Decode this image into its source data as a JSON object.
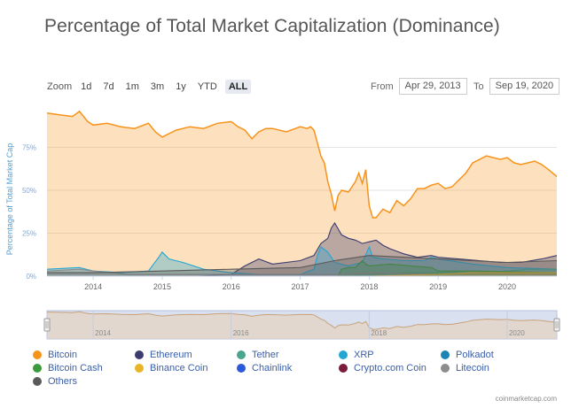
{
  "title": "Percentage of Total Market Capitalization (Dominance)",
  "zoom": {
    "label": "Zoom",
    "buttons": [
      "1d",
      "7d",
      "1m",
      "3m",
      "1y",
      "YTD",
      "ALL"
    ],
    "active": "ALL"
  },
  "range": {
    "from_label": "From",
    "from_value": "Apr 29, 2013",
    "to_label": "To",
    "to_value": "Sep 19, 2020"
  },
  "credit": "coinmarketcap.com",
  "colors": {
    "Bitcoin": "#f7931a",
    "Ethereum": "#3c3c6e",
    "Tether": "#4aa58e",
    "XRP": "#23a7d2",
    "Polkadot": "#1b86b3",
    "Bitcoin Cash": "#3b9a3b",
    "Binance Coin": "#e8b526",
    "Chainlink": "#2a5ada",
    "Crypto.com Coin": "#7a1d3a",
    "Litecoin": "#8c8c8c",
    "Others": "#5a5a5a"
  },
  "chart_data": {
    "type": "area",
    "title": "Percentage of Total Market Capitalization (Dominance)",
    "ylabel": "Percentage of Total Market Cap",
    "xlabel": "",
    "ylim": [
      0,
      100
    ],
    "xlim": [
      2013.33,
      2020.72
    ],
    "y_ticks": [
      "0%",
      "25%",
      "50%",
      "75%"
    ],
    "x_ticks": [
      "2014",
      "2015",
      "2016",
      "2017",
      "2018",
      "2019",
      "2020"
    ],
    "grid": true,
    "legend_position": "bottom",
    "series": [
      {
        "name": "Bitcoin",
        "x": [
          2013.33,
          2013.5,
          2013.7,
          2013.8,
          2013.92,
          2014.0,
          2014.2,
          2014.4,
          2014.6,
          2014.8,
          2014.9,
          2015.0,
          2015.2,
          2015.4,
          2015.6,
          2015.8,
          2016.0,
          2016.1,
          2016.2,
          2016.3,
          2016.4,
          2016.5,
          2016.6,
          2016.8,
          2017.0,
          2017.1,
          2017.15,
          2017.2,
          2017.3,
          2017.35,
          2017.4,
          2017.45,
          2017.5,
          2017.55,
          2017.6,
          2017.7,
          2017.8,
          2017.85,
          2017.9,
          2017.95,
          2018.0,
          2018.05,
          2018.1,
          2018.2,
          2018.3,
          2018.4,
          2018.5,
          2018.6,
          2018.7,
          2018.8,
          2018.9,
          2019.0,
          2019.1,
          2019.2,
          2019.3,
          2019.4,
          2019.5,
          2019.6,
          2019.7,
          2019.8,
          2019.9,
          2020.0,
          2020.1,
          2020.2,
          2020.3,
          2020.4,
          2020.5,
          2020.6,
          2020.72
        ],
        "values": [
          95,
          94,
          93,
          96,
          90,
          88,
          89,
          87,
          86,
          89,
          84,
          81,
          85,
          87,
          86,
          89,
          90,
          87,
          85,
          80,
          84,
          86,
          86,
          84,
          87,
          86,
          87,
          85,
          70,
          66,
          55,
          48,
          38,
          47,
          50,
          49,
          55,
          60,
          54,
          62,
          41,
          34,
          34,
          39,
          37,
          44,
          41,
          45,
          51,
          51,
          53,
          54,
          51,
          52,
          56,
          60,
          66,
          68,
          70,
          69,
          68,
          69,
          66,
          65,
          66,
          67,
          65,
          62,
          58
        ]
      },
      {
        "name": "Ethereum",
        "x": [
          2013.33,
          2015.5,
          2016.0,
          2016.2,
          2016.4,
          2016.6,
          2017.0,
          2017.2,
          2017.3,
          2017.4,
          2017.45,
          2017.5,
          2017.6,
          2017.7,
          2017.8,
          2017.9,
          2018.0,
          2018.1,
          2018.2,
          2018.3,
          2018.5,
          2018.7,
          2018.9,
          2019.0,
          2019.3,
          2019.6,
          2019.9,
          2020.2,
          2020.5,
          2020.72
        ],
        "values": [
          0,
          0,
          1,
          6,
          10,
          7,
          9,
          12,
          19,
          22,
          28,
          31,
          24,
          22,
          21,
          19,
          20,
          21,
          18,
          16,
          13,
          11,
          12,
          11,
          10,
          9,
          8,
          8,
          10,
          12
        ]
      },
      {
        "name": "XRP",
        "x": [
          2013.33,
          2013.8,
          2014.0,
          2014.4,
          2014.8,
          2014.95,
          2015.0,
          2015.1,
          2015.3,
          2015.6,
          2016.0,
          2016.4,
          2016.8,
          2017.0,
          2017.2,
          2017.25,
          2017.3,
          2017.4,
          2017.5,
          2017.7,
          2017.9,
          2018.0,
          2018.05,
          2018.2,
          2018.5,
          2018.8,
          2018.9,
          2019.0,
          2019.5,
          2020.0,
          2020.72
        ],
        "values": [
          4,
          5,
          3,
          2,
          3,
          11,
          14,
          10,
          8,
          4,
          2,
          1,
          1,
          1,
          4,
          12,
          17,
          14,
          8,
          6,
          8,
          17,
          11,
          10,
          9,
          9,
          11,
          10,
          7,
          5,
          4
        ]
      },
      {
        "name": "Tether",
        "x": [
          2013.33,
          2017.5,
          2018.0,
          2018.5,
          2019.0,
          2019.5,
          2020.0,
          2020.3,
          2020.72
        ],
        "values": [
          0,
          0,
          1,
          2,
          2,
          2,
          3,
          4,
          4
        ]
      },
      {
        "name": "Bitcoin Cash",
        "x": [
          2013.33,
          2017.55,
          2017.6,
          2017.7,
          2017.8,
          2017.9,
          2017.95,
          2018.0,
          2018.3,
          2018.6,
          2018.9,
          2019.0,
          2019.5,
          2020.72
        ],
        "values": [
          0,
          0,
          4,
          5,
          5,
          9,
          7,
          6,
          7,
          6,
          5,
          3,
          3,
          2
        ]
      },
      {
        "name": "Litecoin",
        "x": [
          2013.33,
          2013.8,
          2014.0,
          2014.5,
          2015.0,
          2016.0,
          2017.0,
          2017.5,
          2018.0,
          2019.0,
          2019.5,
          2020.72
        ],
        "values": [
          3,
          4,
          3,
          1,
          1,
          1,
          1,
          1,
          2,
          1,
          2,
          1
        ]
      },
      {
        "name": "Binance Coin",
        "x": [
          2013.33,
          2018.0,
          2019.0,
          2019.5,
          2020.72
        ],
        "values": [
          0,
          0,
          1,
          2,
          2
        ]
      },
      {
        "name": "Others",
        "x": [
          2013.33,
          2014.0,
          2015.0,
          2016.0,
          2017.0,
          2017.5,
          2018.0,
          2019.0,
          2020.0,
          2020.72
        ],
        "values": [
          2,
          2,
          3,
          4,
          5,
          9,
          12,
          10,
          8,
          9
        ]
      }
    ]
  },
  "navigator": {
    "x_ticks": [
      "2014",
      "2016",
      "2018",
      "2020"
    ]
  },
  "legend": {
    "items": [
      "Bitcoin",
      "Ethereum",
      "Tether",
      "XRP",
      "Polkadot",
      "Bitcoin Cash",
      "Binance Coin",
      "Chainlink",
      "Crypto.com Coin",
      "Litecoin",
      "Others"
    ]
  }
}
